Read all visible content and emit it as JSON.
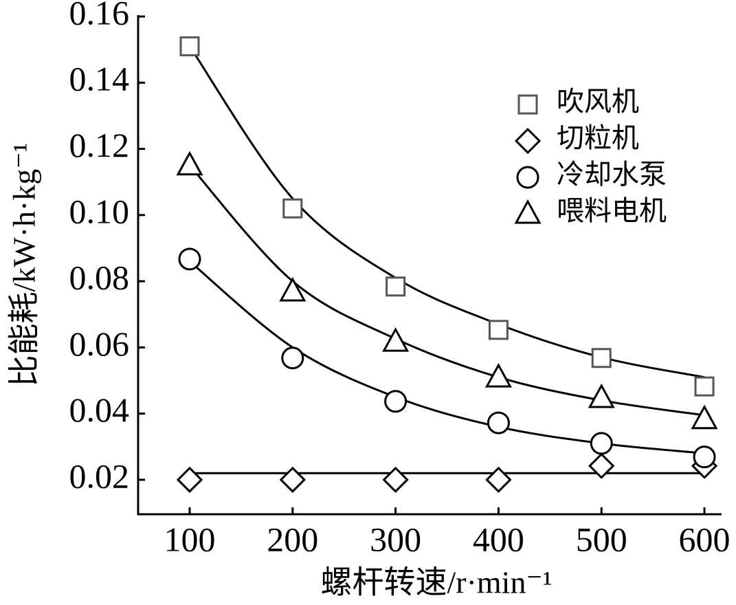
{
  "chart_data": {
    "type": "scatter",
    "x_label": "螺杆转速/r·min⁻¹",
    "y_label": "比能耗/kW·h·kg⁻¹",
    "x": [
      100,
      200,
      300,
      400,
      500,
      600
    ],
    "series": [
      {
        "name": "吹风机",
        "marker": "square",
        "color": "#555555",
        "values": [
          0.151,
          0.102,
          0.0784,
          0.0653,
          0.0568,
          0.0482
        ],
        "fit_values": [
          0.151,
          0.105,
          0.081,
          0.067,
          0.057,
          0.051
        ]
      },
      {
        "name": "切粒机",
        "marker": "diamond",
        "color": "#000000",
        "values": [
          0.02,
          0.02,
          0.02,
          0.02,
          0.0242,
          0.0242
        ],
        "fit_values": [
          0.022,
          0.022,
          0.022,
          0.022,
          0.022,
          0.022
        ]
      },
      {
        "name": "冷却水泵",
        "marker": "circle",
        "color": "#000000",
        "values": [
          0.0867,
          0.0568,
          0.0437,
          0.0372,
          0.031,
          0.0269
        ],
        "fit_values": [
          0.086,
          0.06,
          0.045,
          0.036,
          0.031,
          0.028
        ]
      },
      {
        "name": "喂料电机",
        "marker": "triangle",
        "color": "#000000",
        "values": [
          0.115,
          0.0769,
          0.0617,
          0.0509,
          0.0447,
          0.0383
        ],
        "fit_values": [
          0.115,
          0.08,
          0.0626,
          0.051,
          0.044,
          0.0395
        ]
      }
    ],
    "fit_color": "#000000",
    "xlim": [
      50,
      617
    ],
    "ylim": [
      0.01,
      0.16
    ],
    "xticks": [
      100,
      200,
      300,
      400,
      500,
      600
    ],
    "yticks": [
      0.02,
      0.04,
      0.06,
      0.08,
      {
        "value": 0.1,
        "label": "0.10"
      },
      0.12,
      0.14,
      0.16
    ],
    "legend": "upper right"
  }
}
